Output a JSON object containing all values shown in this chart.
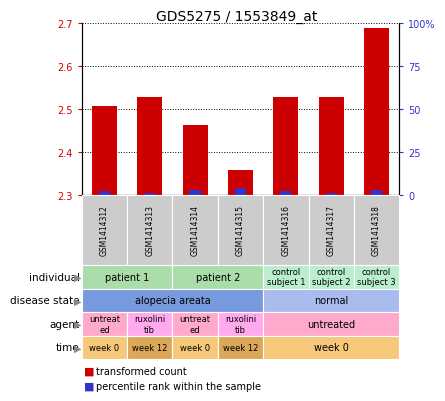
{
  "title": "GDS5275 / 1553849_at",
  "samples": [
    "GSM1414312",
    "GSM1414313",
    "GSM1414314",
    "GSM1414315",
    "GSM1414316",
    "GSM1414317",
    "GSM1414318"
  ],
  "transformed_count": [
    2.506,
    2.527,
    2.462,
    2.358,
    2.527,
    2.527,
    2.687
  ],
  "percentile_rank": [
    2,
    1,
    3,
    4,
    2,
    1,
    3
  ],
  "ylim_left": [
    2.3,
    2.7
  ],
  "ylim_right": [
    0,
    100
  ],
  "yticks_left": [
    2.3,
    2.4,
    2.5,
    2.6,
    2.7
  ],
  "yticks_right": [
    0,
    25,
    50,
    75,
    100
  ],
  "bar_color_red": "#cc0000",
  "bar_color_blue": "#3333cc",
  "individual_data": [
    {
      "label": "patient 1",
      "span": [
        0,
        2
      ],
      "color": "#aaddaa"
    },
    {
      "label": "patient 2",
      "span": [
        2,
        4
      ],
      "color": "#aaddaa"
    },
    {
      "label": "control\nsubject 1",
      "span": [
        4,
        5
      ],
      "color": "#bbeecc"
    },
    {
      "label": "control\nsubject 2",
      "span": [
        5,
        6
      ],
      "color": "#bbeecc"
    },
    {
      "label": "control\nsubject 3",
      "span": [
        6,
        7
      ],
      "color": "#bbeecc"
    }
  ],
  "disease_state_data": [
    {
      "label": "alopecia areata",
      "span": [
        0,
        4
      ],
      "color": "#7799dd"
    },
    {
      "label": "normal",
      "span": [
        4,
        7
      ],
      "color": "#aabbee"
    }
  ],
  "agent_data": [
    {
      "label": "untreat\ned",
      "span": [
        0,
        1
      ],
      "color": "#ffaacc"
    },
    {
      "label": "ruxolini\ntib",
      "span": [
        1,
        2
      ],
      "color": "#ffaaee"
    },
    {
      "label": "untreat\ned",
      "span": [
        2,
        3
      ],
      "color": "#ffaacc"
    },
    {
      "label": "ruxolini\ntib",
      "span": [
        3,
        4
      ],
      "color": "#ffaaee"
    },
    {
      "label": "untreated",
      "span": [
        4,
        7
      ],
      "color": "#ffaacc"
    }
  ],
  "time_data": [
    {
      "label": "week 0",
      "span": [
        0,
        1
      ],
      "color": "#f5c87a"
    },
    {
      "label": "week 12",
      "span": [
        1,
        2
      ],
      "color": "#dba85a"
    },
    {
      "label": "week 0",
      "span": [
        2,
        3
      ],
      "color": "#f5c87a"
    },
    {
      "label": "week 12",
      "span": [
        3,
        4
      ],
      "color": "#dba85a"
    },
    {
      "label": "week 0",
      "span": [
        4,
        7
      ],
      "color": "#f5c87a"
    }
  ],
  "sample_bg_color": "#cccccc",
  "bg_color": "#ffffff",
  "left_axis_color": "#cc0000",
  "right_axis_color": "#3333cc"
}
